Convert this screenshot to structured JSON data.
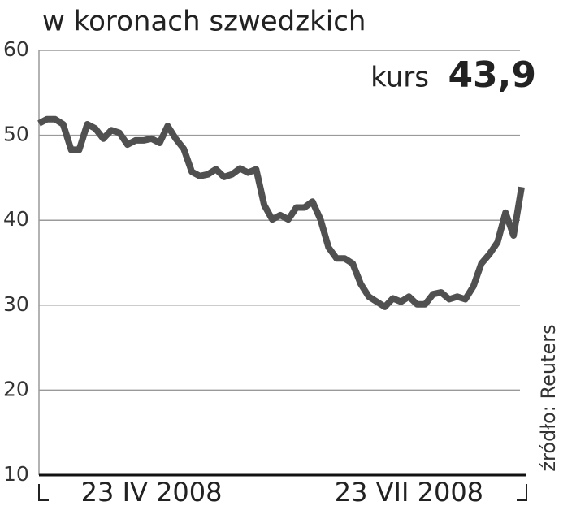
{
  "chart_data": {
    "type": "line",
    "title": "w koronach szwedzkich",
    "annotation": {
      "label": "kurs",
      "value": "43,9"
    },
    "source": "źródło: Reuters",
    "categories": [
      null,
      null,
      null,
      null,
      null,
      null,
      null,
      null,
      null,
      null,
      null,
      null,
      null,
      null,
      "23 IV 2008",
      null,
      null,
      null,
      null,
      null,
      null,
      null,
      null,
      null,
      null,
      null,
      null,
      null,
      null,
      null,
      null,
      null,
      null,
      null,
      null,
      null,
      null,
      null,
      null,
      null,
      null,
      null,
      null,
      null,
      null,
      null,
      "23 VII 2008",
      null,
      null,
      null,
      null,
      null,
      null,
      null,
      null,
      null,
      null,
      null,
      null,
      null,
      null
    ],
    "series": [
      {
        "name": "kurs",
        "color": "#505050",
        "values": [
          51.4,
          51.9,
          51.9,
          51.3,
          48.3,
          48.3,
          51.3,
          50.8,
          49.6,
          50.6,
          50.3,
          48.9,
          49.4,
          49.4,
          49.6,
          49.1,
          51.1,
          49.6,
          48.4,
          45.7,
          45.2,
          45.4,
          46.0,
          45.1,
          45.4,
          46.1,
          45.6,
          46.0,
          41.8,
          40.1,
          40.6,
          40.1,
          41.5,
          41.5,
          42.2,
          40.1,
          36.8,
          35.5,
          35.5,
          34.9,
          32.5,
          31.0,
          30.4,
          29.8,
          30.8,
          30.4,
          31.0,
          30.1,
          30.1,
          31.3,
          31.5,
          30.7,
          31.0,
          30.7,
          32.2,
          34.9,
          36.0,
          37.4,
          40.9,
          38.2,
          43.9
        ]
      }
    ],
    "ylim": [
      10,
      60
    ],
    "yticks": [
      10,
      20,
      30,
      40,
      50,
      60
    ],
    "grid": true
  }
}
